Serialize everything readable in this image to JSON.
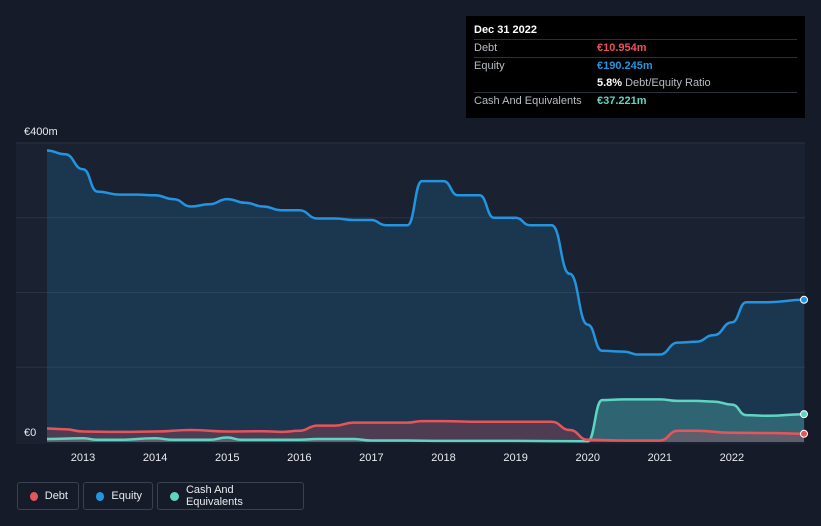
{
  "chart_data": {
    "type": "area",
    "y_top_label": "€400m",
    "y_zero_label": "€0",
    "ylim": [
      0,
      400
    ],
    "xlim": [
      2012.5,
      2023.0
    ],
    "x_ticks": [
      "2013",
      "2014",
      "2015",
      "2016",
      "2017",
      "2018",
      "2019",
      "2020",
      "2021",
      "2022"
    ],
    "series": [
      {
        "name": "Debt",
        "color": "#e8545c",
        "points": [
          [
            2012.5,
            18
          ],
          [
            2012.75,
            17
          ],
          [
            2013.0,
            14
          ],
          [
            2013.5,
            13.5
          ],
          [
            2014.0,
            14
          ],
          [
            2014.5,
            16
          ],
          [
            2015.0,
            14
          ],
          [
            2015.5,
            14.5
          ],
          [
            2015.75,
            13.5
          ],
          [
            2016.0,
            15
          ],
          [
            2016.25,
            22
          ],
          [
            2016.5,
            22
          ],
          [
            2016.75,
            26
          ],
          [
            2017.0,
            26
          ],
          [
            2017.5,
            26
          ],
          [
            2017.7,
            28
          ],
          [
            2018.0,
            28
          ],
          [
            2018.5,
            27
          ],
          [
            2019.0,
            27
          ],
          [
            2019.5,
            27
          ],
          [
            2019.75,
            16
          ],
          [
            2020.0,
            3
          ],
          [
            2020.5,
            2
          ],
          [
            2021.0,
            2
          ],
          [
            2021.25,
            15
          ],
          [
            2021.5,
            15
          ],
          [
            2022.0,
            12.5
          ],
          [
            2022.5,
            12
          ],
          [
            2023.0,
            10.954
          ]
        ]
      },
      {
        "name": "Equity",
        "color": "#2394df",
        "points": [
          [
            2012.5,
            390
          ],
          [
            2012.75,
            385
          ],
          [
            2013.0,
            365
          ],
          [
            2013.2,
            335
          ],
          [
            2013.5,
            331
          ],
          [
            2013.75,
            331
          ],
          [
            2014.0,
            330
          ],
          [
            2014.25,
            325
          ],
          [
            2014.5,
            315
          ],
          [
            2014.75,
            318
          ],
          [
            2015.0,
            325
          ],
          [
            2015.25,
            320
          ],
          [
            2015.5,
            315
          ],
          [
            2015.75,
            310
          ],
          [
            2016.0,
            310
          ],
          [
            2016.25,
            299
          ],
          [
            2016.5,
            299
          ],
          [
            2016.75,
            297
          ],
          [
            2017.0,
            297
          ],
          [
            2017.2,
            290
          ],
          [
            2017.5,
            290
          ],
          [
            2017.7,
            349
          ],
          [
            2018.0,
            349
          ],
          [
            2018.2,
            330
          ],
          [
            2018.5,
            330
          ],
          [
            2018.7,
            300
          ],
          [
            2019.0,
            300
          ],
          [
            2019.2,
            290
          ],
          [
            2019.5,
            290
          ],
          [
            2019.75,
            225
          ],
          [
            2020.0,
            157
          ],
          [
            2020.2,
            122
          ],
          [
            2020.5,
            121
          ],
          [
            2020.7,
            117
          ],
          [
            2021.0,
            117
          ],
          [
            2021.25,
            133
          ],
          [
            2021.5,
            134
          ],
          [
            2021.75,
            143
          ],
          [
            2022.0,
            160
          ],
          [
            2022.2,
            187
          ],
          [
            2022.5,
            187
          ],
          [
            2023.0,
            190.245
          ]
        ]
      },
      {
        "name": "Cash And Equivalents",
        "color": "#5fd4c2",
        "points": [
          [
            2012.5,
            4
          ],
          [
            2013.0,
            5
          ],
          [
            2013.2,
            3
          ],
          [
            2013.5,
            3
          ],
          [
            2014.0,
            5
          ],
          [
            2014.25,
            3
          ],
          [
            2014.75,
            3
          ],
          [
            2015.0,
            6
          ],
          [
            2015.2,
            3
          ],
          [
            2015.5,
            3
          ],
          [
            2016.0,
            3
          ],
          [
            2016.25,
            4
          ],
          [
            2016.75,
            4
          ],
          [
            2017.0,
            2
          ],
          [
            2017.5,
            2
          ],
          [
            2018.0,
            1.5
          ],
          [
            2019.0,
            1.5
          ],
          [
            2020.0,
            1
          ],
          [
            2020.2,
            56
          ],
          [
            2020.5,
            57
          ],
          [
            2020.7,
            57
          ],
          [
            2021.0,
            57
          ],
          [
            2021.25,
            55
          ],
          [
            2021.5,
            55
          ],
          [
            2021.75,
            54
          ],
          [
            2022.0,
            50
          ],
          [
            2022.2,
            36
          ],
          [
            2022.5,
            35
          ],
          [
            2023.0,
            37.221
          ]
        ]
      }
    ]
  },
  "tooltip": {
    "date": "Dec 31 2022",
    "debt_label": "Debt",
    "debt_value": "€10.954m",
    "equity_label": "Equity",
    "equity_value": "€190.245m",
    "ratio_value": "5.8%",
    "ratio_label": "Debt/Equity Ratio",
    "cash_label": "Cash And Equivalents",
    "cash_value": "€37.221m"
  },
  "legend": {
    "debt": "Debt",
    "equity": "Equity",
    "cash": "Cash And Equivalents"
  },
  "colors": {
    "background": "#151b28",
    "plot_area": "#1a2130",
    "debt": "#e8545c",
    "equity": "#2394df",
    "cash": "#5fd4c2"
  }
}
